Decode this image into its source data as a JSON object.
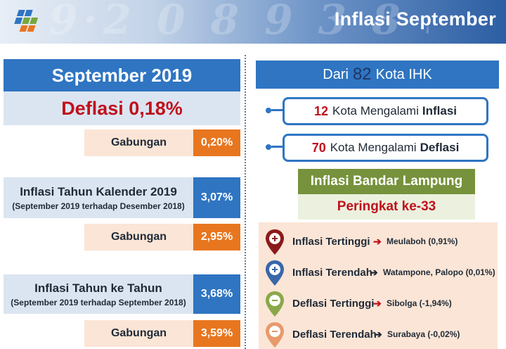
{
  "header": {
    "title": "Inflasi September",
    "logo_icon": "bps-logo-icon",
    "colors": {
      "gradient_end": "#2c5ea3"
    }
  },
  "left": {
    "period_title": "September 2019",
    "headline": "Deflasi 0,18%",
    "gabungan_label": "Gabungan",
    "gabungan_monthly": "0,20%",
    "calendar": {
      "label": "Inflasi Tahun Kalender 2019",
      "sub": "(September 2019 terhadap Desember 2018)",
      "value": "3,07%",
      "gabungan": "2,95%"
    },
    "yoy": {
      "label": "Inflasi Tahun ke Tahun",
      "sub": "(September 2019 terhadap September 2018)",
      "value": "3,68%",
      "gabungan": "3,59%"
    },
    "colors": {
      "blue": "#2f75c2",
      "orange": "#e8761f",
      "red": "#c0111c"
    }
  },
  "right": {
    "ihk": {
      "prefix": "Dari",
      "count": "82",
      "suffix": "Kota  IHK"
    },
    "inflasi_cities": {
      "count": "12",
      "text": "Kota Mengalami",
      "kind": "Inflasi"
    },
    "deflasi_cities": {
      "count": "70",
      "text": "Kota Mengalami",
      "kind": "Deflasi"
    },
    "lampung": {
      "title": "Inflasi Bandar Lampung",
      "rank": "Peringkat ke-33"
    },
    "extremes": [
      {
        "label": "Inflasi Tertinggi",
        "city": "Meulaboh (0,91%)",
        "icon": "map-pin-plus-icon",
        "pin_color": "#8b1a1a",
        "arrow_color": "#c0111c"
      },
      {
        "label": "Inflasi Terendah",
        "city": "Watampone, Palopo (0,01%)",
        "icon": "map-pin-plus-icon",
        "pin_color": "#3a67a8",
        "arrow_color": "#1f2a37"
      },
      {
        "label": "Deflasi Tertinggi",
        "city": "Sibolga (-1,94%)",
        "icon": "map-pin-minus-icon",
        "pin_color": "#8aa84a",
        "arrow_color": "#c0111c"
      },
      {
        "label": "Deflasi Terendah",
        "city": "Surabaya (-0,02%)",
        "icon": "map-pin-minus-icon",
        "pin_color": "#e89a6a",
        "arrow_color": "#1f2a37"
      }
    ]
  }
}
